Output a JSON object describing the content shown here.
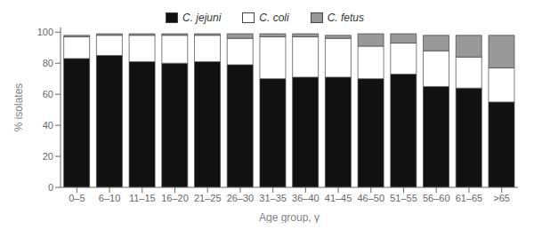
{
  "chart_data": {
    "type": "bar",
    "stacked": true,
    "xlabel": "Age group, y",
    "ylabel": "% isolates",
    "categories": [
      "0–5",
      "6–10",
      "11–15",
      "16–20",
      "21–25",
      "26–30",
      "31–35",
      "36–40",
      "41–45",
      "46–50",
      "51–55",
      "56–60",
      "61–65",
      ">65"
    ],
    "series": [
      {
        "name": "C. jejuni",
        "color": "#111111",
        "values": [
          83,
          85,
          81,
          80,
          81,
          79,
          70,
          71,
          71,
          70,
          73,
          65,
          64,
          55
        ]
      },
      {
        "name": "C. coli",
        "color": "#ffffff",
        "values": [
          14,
          13,
          17,
          18,
          17,
          17,
          27,
          26,
          25,
          21,
          20,
          23,
          20,
          22
        ]
      },
      {
        "name": "C. fetus",
        "color": "#999999",
        "values": [
          1,
          1,
          1,
          1,
          1,
          3,
          2,
          2,
          2,
          8,
          6,
          10,
          14,
          21
        ]
      }
    ],
    "ylim": [
      0,
      103
    ],
    "yticks": [
      0,
      20,
      40,
      60,
      80,
      100
    ],
    "grid": false,
    "legend": "top"
  }
}
